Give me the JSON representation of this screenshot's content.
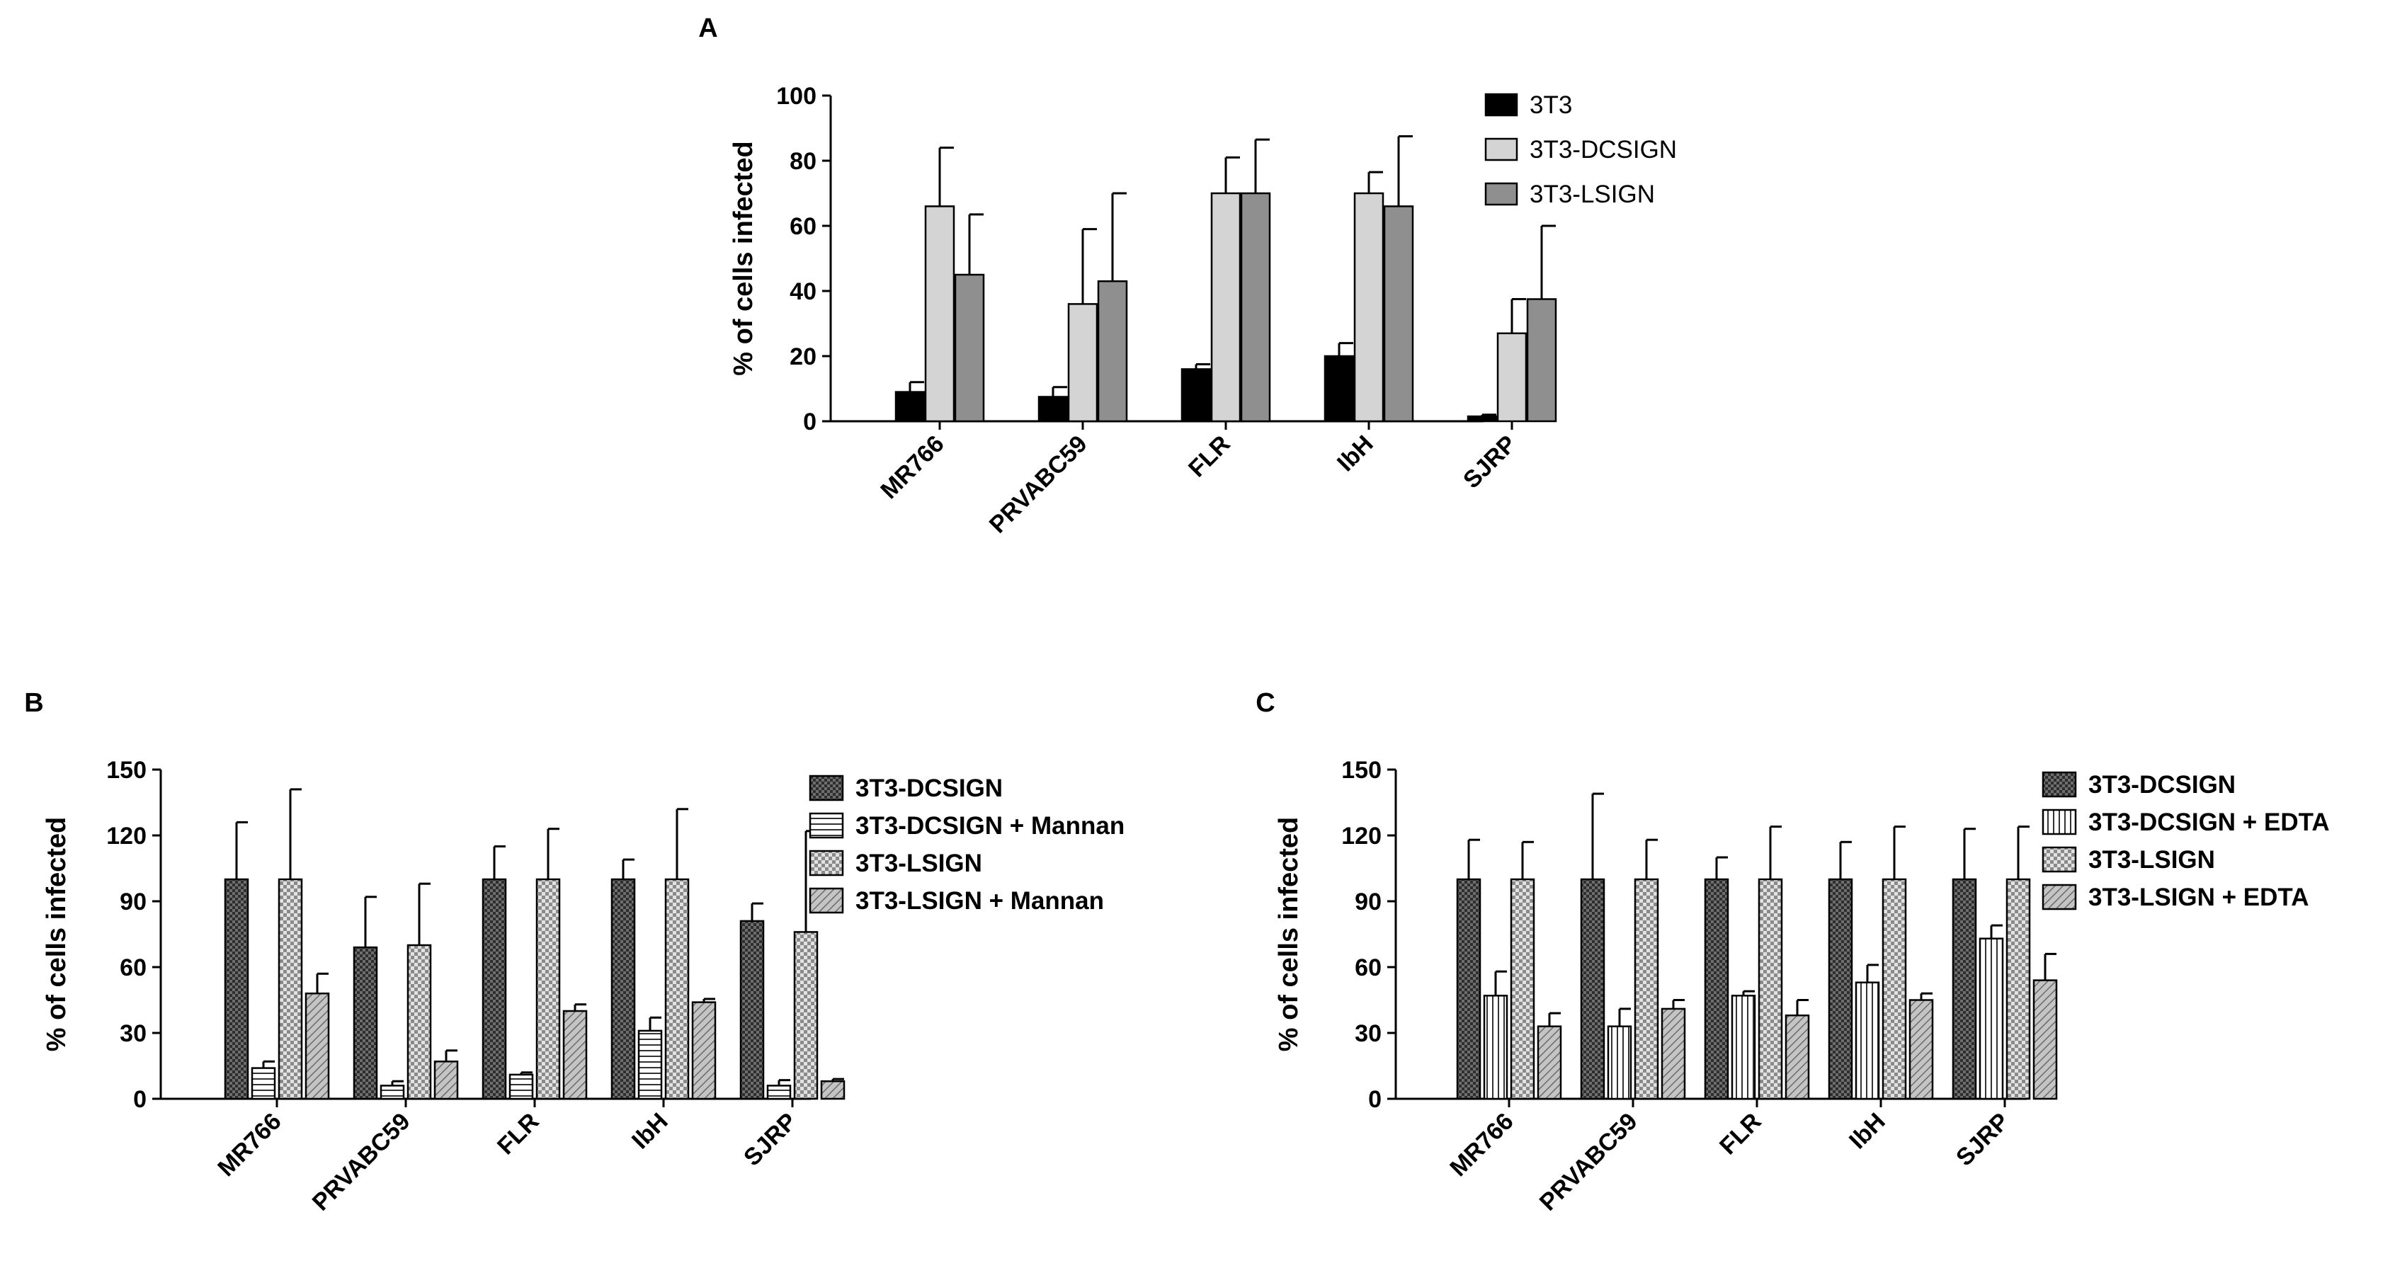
{
  "figure": {
    "panel_labels": [
      "A",
      "B",
      "C"
    ]
  },
  "chart_data": [
    {
      "panel": "A",
      "type": "bar",
      "title": "",
      "xlabel": "",
      "ylabel": "% of cells infected",
      "ylim": [
        0,
        100
      ],
      "yticks": [
        0,
        20,
        40,
        60,
        80,
        100
      ],
      "categories": [
        "MR766",
        "PRVABC59",
        "FLR",
        "IbH",
        "SJRP"
      ],
      "legend_position": "top-right",
      "series": [
        {
          "name": "3T3",
          "fill": "#000000",
          "pattern": "solid",
          "values": [
            9,
            7.5,
            16,
            20,
            1.5
          ],
          "errors": [
            3,
            3,
            1.5,
            4,
            0.5
          ]
        },
        {
          "name": "3T3-DCSIGN",
          "fill": "#d4d4d4",
          "pattern": "solid",
          "values": [
            66,
            36,
            70,
            70,
            27
          ],
          "errors": [
            18,
            23,
            11,
            6.5,
            10.5
          ]
        },
        {
          "name": "3T3-LSIGN",
          "fill": "#8f8f8f",
          "pattern": "solid",
          "values": [
            45,
            43,
            70,
            66,
            37.5
          ],
          "errors": [
            18.5,
            27,
            16.5,
            21.5,
            22.5
          ]
        }
      ]
    },
    {
      "panel": "B",
      "type": "bar",
      "title": "",
      "xlabel": "",
      "ylabel": "% of cells infected",
      "ylim": [
        0,
        150
      ],
      "yticks": [
        0,
        30,
        60,
        90,
        120,
        150
      ],
      "categories": [
        "MR766",
        "PRVABC59",
        "FLR",
        "IbH",
        "SJRP"
      ],
      "legend_position": "top-right",
      "series": [
        {
          "name": "3T3-DCSIGN",
          "fill": "#6e6e6e",
          "pattern": "dots",
          "values": [
            100,
            69,
            100,
            100,
            81
          ],
          "errors": [
            26,
            23,
            15,
            9,
            8
          ]
        },
        {
          "name": "3T3-DCSIGN + Mannan",
          "fill": "#ffffff",
          "pattern": "hlines",
          "values": [
            14,
            6,
            11,
            31,
            6
          ],
          "errors": [
            3,
            2,
            1,
            6,
            2.5
          ]
        },
        {
          "name": "3T3-LSIGN",
          "fill": "#c8c8c8",
          "pattern": "check",
          "values": [
            100,
            70,
            100,
            100,
            76
          ],
          "errors": [
            41,
            28,
            23,
            32,
            46
          ]
        },
        {
          "name": "3T3-LSIGN + Mannan",
          "fill": "#b4b4b4",
          "pattern": "diag",
          "values": [
            48,
            17,
            40,
            44,
            8
          ],
          "errors": [
            9,
            5,
            3,
            1.5,
            1
          ]
        }
      ]
    },
    {
      "panel": "C",
      "type": "bar",
      "title": "",
      "xlabel": "",
      "ylabel": "% of cells infected",
      "ylim": [
        0,
        150
      ],
      "yticks": [
        0,
        30,
        60,
        90,
        120,
        150
      ],
      "categories": [
        "MR766",
        "PRVABC59",
        "FLR",
        "IbH",
        "SJRP"
      ],
      "legend_position": "top-right",
      "series": [
        {
          "name": "3T3-DCSIGN",
          "fill": "#6e6e6e",
          "pattern": "dots",
          "values": [
            100,
            100,
            100,
            100,
            100
          ],
          "errors": [
            18,
            39,
            10,
            17,
            23
          ]
        },
        {
          "name": "3T3-DCSIGN + EDTA",
          "fill": "#ffffff",
          "pattern": "vlines",
          "values": [
            47,
            33,
            47,
            53,
            73
          ],
          "errors": [
            11,
            8,
            2,
            8,
            6
          ]
        },
        {
          "name": "3T3-LSIGN",
          "fill": "#c8c8c8",
          "pattern": "check",
          "values": [
            100,
            100,
            100,
            100,
            100
          ],
          "errors": [
            17,
            18,
            24,
            24,
            24
          ]
        },
        {
          "name": "3T3-LSIGN + EDTA",
          "fill": "#b4b4b4",
          "pattern": "diag",
          "values": [
            33,
            41,
            38,
            45,
            54
          ],
          "errors": [
            6,
            4,
            7,
            3,
            12
          ]
        }
      ]
    }
  ]
}
